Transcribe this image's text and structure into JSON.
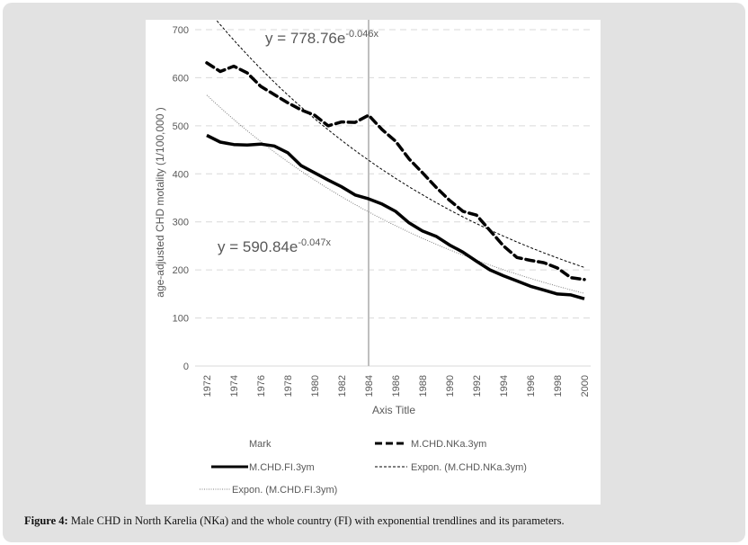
{
  "figure": {
    "caption_label": "Figure 4:",
    "caption_text": " Male CHD in North Karelia (NKa) and the whole country (FI) with exponential trendlines and its parameters."
  },
  "chart_data": {
    "type": "line",
    "title": "",
    "xlabel": "Axis Title",
    "ylabel": "age-adjusted CHD motality (1/100,000 )",
    "ylim": [
      0,
      700
    ],
    "yticks": [
      0,
      100,
      200,
      300,
      400,
      500,
      600,
      700
    ],
    "xlim": [
      1972,
      2000
    ],
    "xticks": [
      1972,
      1974,
      1976,
      1978,
      1980,
      1982,
      1984,
      1986,
      1988,
      1990,
      1992,
      1994,
      1996,
      1998,
      2000
    ],
    "grid": "horizontal-dashed",
    "vertical_marker": {
      "name": "Mark",
      "x": 1984,
      "color": "#bfbfbf"
    },
    "x": [
      1972,
      1973,
      1974,
      1975,
      1976,
      1977,
      1978,
      1979,
      1980,
      1981,
      1982,
      1983,
      1984,
      1985,
      1986,
      1987,
      1988,
      1989,
      1990,
      1991,
      1992,
      1993,
      1994,
      1995,
      1996,
      1997,
      1998,
      1999,
      2000
    ],
    "series": [
      {
        "name": "M.CHD.NKa.3ym",
        "style": "dashed-thick",
        "color": "#000000",
        "values": [
          631,
          613,
          624,
          610,
          582,
          565,
          548,
          533,
          522,
          500,
          508,
          507,
          522,
          492,
          468,
          431,
          402,
          372,
          345,
          322,
          314,
          282,
          250,
          226,
          220,
          215,
          204,
          184,
          180
        ]
      },
      {
        "name": "M.CHD.FI.3ym",
        "style": "solid-thick",
        "color": "#000000",
        "values": [
          480,
          466,
          461,
          460,
          462,
          458,
          444,
          417,
          402,
          387,
          373,
          356,
          348,
          337,
          322,
          298,
          281,
          270,
          252,
          237,
          218,
          200,
          188,
          177,
          166,
          158,
          150,
          148,
          140
        ]
      }
    ],
    "trendlines": [
      {
        "name": "Expon. (M.CHD.NKa.3ym)",
        "style": "dashed-thin",
        "color": "#000000",
        "a": 778.76,
        "b": -0.046,
        "equation_base": "y = 778.76e",
        "equation_exp": "-0.046x"
      },
      {
        "name": "Expon. (M.CHD.FI.3ym)",
        "style": "dotted-thin",
        "color": "#7f7f7f",
        "a": 590.84,
        "b": -0.047,
        "equation_base": "y = 590.84e",
        "equation_exp": "-0.047x"
      }
    ],
    "legend": {
      "position": "bottom",
      "entries": [
        "Mark",
        "M.CHD.NKa.3ym",
        "M.CHD.FI.3ym",
        "Expon. (M.CHD.NKa.3ym)",
        "Expon. (M.CHD.FI.3ym)"
      ]
    }
  }
}
